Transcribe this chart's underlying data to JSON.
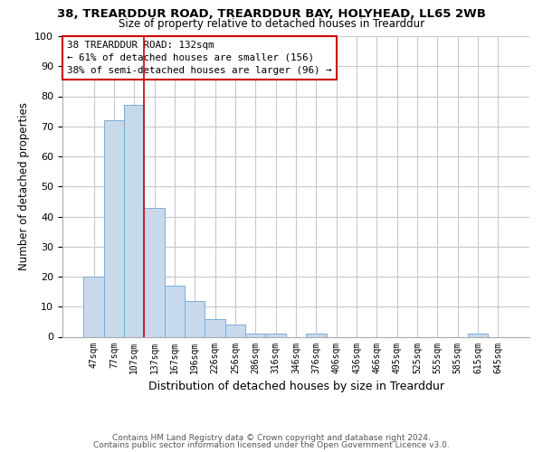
{
  "title1": "38, TREARDDUR ROAD, TREARDDUR BAY, HOLYHEAD, LL65 2WB",
  "title2": "Size of property relative to detached houses in Trearddur",
  "xlabel": "Distribution of detached houses by size in Trearddur",
  "ylabel": "Number of detached properties",
  "bin_labels": [
    "47sqm",
    "77sqm",
    "107sqm",
    "137sqm",
    "167sqm",
    "196sqm",
    "226sqm",
    "256sqm",
    "286sqm",
    "316sqm",
    "346sqm",
    "376sqm",
    "406sqm",
    "436sqm",
    "466sqm",
    "495sqm",
    "525sqm",
    "555sqm",
    "585sqm",
    "615sqm",
    "645sqm"
  ],
  "bar_values": [
    20,
    72,
    77,
    43,
    17,
    12,
    6,
    4,
    1,
    1,
    0,
    1,
    0,
    0,
    0,
    0,
    0,
    0,
    0,
    1,
    0
  ],
  "bar_color": "#c8d9ec",
  "bar_edge_color": "#7aadd4",
  "vline_color": "#cc0000",
  "vline_x_index": 3,
  "ylim": [
    0,
    100
  ],
  "annotation_text": "38 TREARDDUR ROAD: 132sqm\n← 61% of detached houses are smaller (156)\n38% of semi-detached houses are larger (96) →",
  "annotation_box_color": "white",
  "annotation_box_edge_color": "#cc0000",
  "footer1": "Contains HM Land Registry data © Crown copyright and database right 2024.",
  "footer2": "Contains public sector information licensed under the Open Government Licence v3.0.",
  "bg_color": "white",
  "grid_color": "#c8c8d0"
}
